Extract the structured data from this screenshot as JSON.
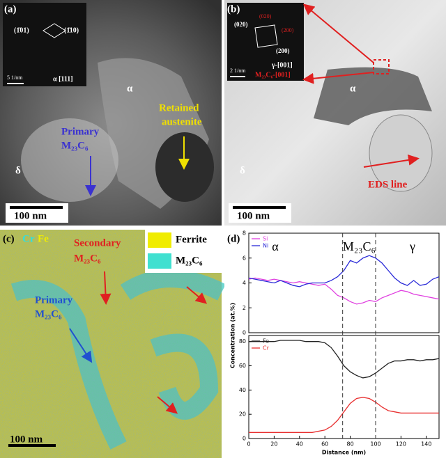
{
  "panel_a": {
    "label": "(a)",
    "spots": [
      "(1̄01)",
      "(1̄10)"
    ],
    "zone": "α [111]",
    "scale_inset": "5 1/nm",
    "phase_alpha": "α",
    "phase_delta": "δ",
    "retained": [
      "Retained",
      "austenite"
    ],
    "primary": [
      "Primary",
      "M₂₃C₆"
    ],
    "scale": "100 nm"
  },
  "panel_b": {
    "label": "(b)",
    "spots_white": [
      "(020)",
      "(200)"
    ],
    "spots_red": [
      "(020)",
      "(200)"
    ],
    "zone_gamma": "γ-[001]",
    "zone_m": "M₂₃C₆-[001]",
    "scale_inset": "2 1/nm",
    "phase_alpha": "α",
    "phase_delta": "δ",
    "eds": "EDS line",
    "scale": "100 nm"
  },
  "panel_c": {
    "label": "(c)",
    "map_elements": [
      "Cr",
      "Fe"
    ],
    "legend": [
      "Ferrite",
      "M₂₃C₆"
    ],
    "secondary": [
      "Secondary",
      "M₂₃C₆"
    ],
    "primary": [
      "Primary",
      "M₂₃C₆"
    ],
    "scale": "100 nm"
  },
  "chart_data": {
    "type": "line",
    "label": "(d)",
    "xlabel": "Distance (nm)",
    "ylabel": "Concentration (at.%)",
    "annotations": [
      "α",
      "M₂₃C₆",
      "γ"
    ],
    "vlines": [
      74,
      100
    ],
    "x": [
      0,
      5,
      10,
      15,
      20,
      25,
      30,
      35,
      40,
      45,
      50,
      55,
      60,
      65,
      70,
      75,
      80,
      85,
      90,
      95,
      100,
      105,
      110,
      115,
      120,
      125,
      130,
      135,
      140,
      145,
      150
    ],
    "xlim": [
      0,
      150
    ],
    "xticks": [
      0,
      20,
      40,
      60,
      80,
      100,
      120,
      140
    ],
    "panels": [
      {
        "ylim": [
          0,
          8
        ],
        "yticks": [
          0,
          2,
          4,
          6,
          8
        ],
        "series": [
          {
            "name": "Si",
            "color": "#e040e0",
            "values": [
              4.3,
              4.4,
              4.3,
              4.2,
              4.3,
              4.2,
              4.1,
              4.0,
              4.1,
              4.0,
              3.9,
              3.8,
              3.9,
              3.5,
              3.0,
              2.8,
              2.5,
              2.3,
              2.4,
              2.6,
              2.5,
              2.8,
              3.0,
              3.2,
              3.4,
              3.3,
              3.1,
              3.0,
              2.9,
              2.8,
              2.7
            ]
          },
          {
            "name": "Ni",
            "color": "#2a2ad8",
            "values": [
              4.4,
              4.3,
              4.2,
              4.1,
              4.0,
              4.2,
              4.0,
              3.8,
              3.7,
              3.9,
              4.0,
              4.0,
              4.0,
              4.2,
              4.5,
              5.0,
              5.8,
              5.6,
              6.0,
              6.2,
              6.0,
              5.6,
              5.0,
              4.4,
              4.0,
              3.8,
              4.2,
              3.8,
              3.9,
              4.3,
              4.5
            ]
          }
        ]
      },
      {
        "ylim": [
          0,
          85
        ],
        "yticks": [
          0,
          20,
          40,
          60,
          80
        ],
        "series": [
          {
            "name": "Fe",
            "color": "#222222",
            "values": [
              80,
              80,
              80,
              80,
              80,
              81,
              81,
              81,
              81,
              80,
              80,
              80,
              79,
              75,
              68,
              60,
              55,
              52,
              50,
              51,
              54,
              58,
              62,
              64,
              64,
              65,
              65,
              64,
              65,
              65,
              66
            ]
          },
          {
            "name": "Cr",
            "color": "#e83030",
            "values": [
              5,
              5,
              5,
              5,
              5,
              5,
              5,
              5,
              5,
              5,
              5,
              6,
              7,
              10,
              15,
              22,
              29,
              33,
              34,
              33,
              30,
              26,
              23,
              22,
              21,
              21,
              21,
              21,
              21,
              21,
              21
            ]
          }
        ]
      }
    ]
  }
}
